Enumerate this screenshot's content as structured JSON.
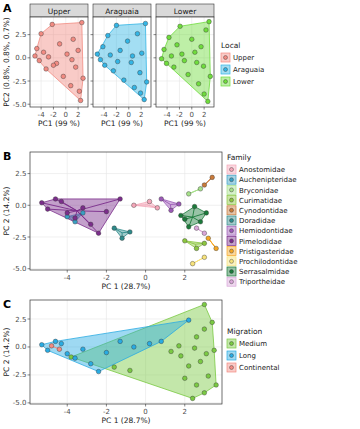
{
  "chart_data": [
    {
      "type": "scatter",
      "annotations": [
        "A"
      ],
      "title": "Upper",
      "x_label": "PC1 (99 %)",
      "y_label": "PC2 (0.8%, 0.8%, 0.7%)",
      "xlim": [
        -5.8,
        3.6
      ],
      "ylim": [
        -5.3,
        4.4
      ],
      "xticks": [
        -4,
        -2,
        0,
        2
      ],
      "yticks": [
        {
          "value": -5,
          "label": "-5.0"
        },
        -2.5,
        {
          "value": 0,
          "label": "0.0"
        },
        2.5
      ],
      "grid": true,
      "series": [
        {
          "name": "Upper",
          "color": "#f28b82",
          "x": [
            -5.0,
            -4.7,
            -4.3,
            -4.0,
            -3.6,
            -3.2,
            -2.8,
            -2.2,
            -1.5,
            -1.0,
            -0.4,
            0.2,
            0.8,
            1.2,
            1.6,
            2.0,
            2.4,
            2.6,
            2.8,
            2.2,
            1.0,
            -2.0
          ],
          "values": [
            0.2,
            1.0,
            -0.3,
            2.6,
            0.6,
            -1.2,
            0.1,
            3.6,
            -0.6,
            1.5,
            -2.0,
            0.4,
            -3.0,
            2.0,
            -1.0,
            0.8,
            -4.6,
            3.8,
            -2.2,
            -3.6,
            -0.2,
            -0.8
          ]
        }
      ]
    },
    {
      "type": "scatter",
      "title": "Araguaia",
      "x_label": "PC1 (99 %)",
      "xlim": [
        -5.8,
        3.6
      ],
      "ylim": [
        -5.3,
        4.4
      ],
      "xticks": [
        -4,
        -2,
        0,
        2
      ],
      "yticks": [
        {
          "value": -5,
          "label": "-5.0"
        },
        -2.5,
        {
          "value": 0,
          "label": "0.0"
        },
        2.5
      ],
      "grid": true,
      "tick_labels": "x",
      "series": [
        {
          "name": "Araguaia",
          "color": "#33b5e5",
          "x": [
            -5.1,
            -4.6,
            -4.2,
            -3.9,
            -3.4,
            -3.0,
            -2.5,
            -2.0,
            -1.4,
            -0.8,
            -0.2,
            0.4,
            0.9,
            1.4,
            1.8,
            2.1,
            2.5,
            2.7,
            2.9,
            1.9,
            0.6,
            -1.8
          ],
          "values": [
            0.4,
            -0.2,
            1.2,
            -0.8,
            2.4,
            0.3,
            -1.4,
            3.5,
            0.8,
            -2.4,
            1.8,
            -0.5,
            -3.2,
            2.6,
            -1.6,
            0.5,
            -4.5,
            3.7,
            -2.6,
            -3.8,
            0.2,
            -0.4
          ]
        }
      ]
    },
    {
      "type": "scatter",
      "title": "Lower",
      "x_label": "PC1 (99 %)",
      "xlim": [
        -5.8,
        3.6
      ],
      "ylim": [
        -5.3,
        4.4
      ],
      "xticks": [
        -4,
        -2,
        0,
        2
      ],
      "yticks": [
        {
          "value": -5,
          "label": "-5.0"
        },
        -2.5,
        {
          "value": 0,
          "label": "0.0"
        },
        2.5
      ],
      "grid": true,
      "tick_labels": "x",
      "legend": "right",
      "legend_title": "Local",
      "series": [
        {
          "name": "Lower",
          "color": "#6fdc3c",
          "x": [
            -4.9,
            -4.5,
            -4.1,
            -3.7,
            -3.3,
            -2.9,
            -2.4,
            -1.9,
            -1.2,
            -0.6,
            0.0,
            0.5,
            1.1,
            1.5,
            1.9,
            2.3,
            2.6,
            2.8,
            3.0,
            2.0,
            0.8,
            -1.6
          ],
          "values": [
            -0.1,
            0.9,
            -0.6,
            2.2,
            0.2,
            -1.0,
            1.4,
            3.4,
            -0.3,
            -1.8,
            2.0,
            0.6,
            -2.8,
            1.2,
            -0.9,
            3.0,
            -4.7,
            3.9,
            -2.0,
            -3.9,
            -0.5,
            0.4
          ]
        }
      ]
    },
    {
      "type": "scatter",
      "annotations": [
        "B"
      ],
      "x_label": "PC 1 (28.7%)",
      "y_label": "PC 2 (14.2%)",
      "xlim": [
        -5.9,
        3.9
      ],
      "ylim": [
        -5.1,
        4.2
      ],
      "xticks": [
        -4,
        -2,
        0,
        2
      ],
      "yticks": [
        {
          "value": -5,
          "label": "-5.0"
        },
        -2.5,
        {
          "value": 0,
          "label": "0.0"
        },
        2.5
      ],
      "grid": true,
      "legend": "right",
      "legend_title": "Family",
      "series": [
        {
          "name": "Anostomidae",
          "color": "#f4a6b8",
          "x": [
            -0.6,
            0.2,
            0.6
          ],
          "values": [
            0.0,
            0.3,
            -0.2
          ]
        },
        {
          "name": "Auchenipteridae",
          "color": "#3a9fc4",
          "x": [
            -4.0,
            -3.6,
            -3.2
          ],
          "values": [
            -0.9,
            -1.3,
            -0.6
          ]
        },
        {
          "name": "Bryconidae",
          "color": "#a6e08a",
          "x": [
            2.2,
            2.8
          ],
          "values": [
            0.9,
            1.3
          ]
        },
        {
          "name": "Curimatidae",
          "color": "#8cc63f",
          "x": [
            2.0,
            2.6,
            3.0
          ],
          "values": [
            -2.8,
            -3.4,
            -3.0
          ]
        },
        {
          "name": "Cynodontidae",
          "color": "#c97a3a",
          "x": [
            3.0,
            3.4
          ],
          "values": [
            1.6,
            2.2
          ]
        },
        {
          "name": "Doradidae",
          "color": "#2e8b8b",
          "x": [
            -1.6,
            -0.8,
            -1.2
          ],
          "values": [
            -1.8,
            -2.1,
            -2.6
          ]
        },
        {
          "name": "Hemiodontidae",
          "color": "#9b59b6",
          "x": [
            0.8,
            1.3,
            1.7
          ],
          "values": [
            0.5,
            -0.4,
            0.1
          ]
        },
        {
          "name": "Pimelodidae",
          "color": "#7b2d8b",
          "x": [
            -5.3,
            -5.0,
            -4.6,
            -4.3,
            -4.0,
            -3.6,
            -3.2,
            -2.8,
            -2.4,
            -1.3,
            -2.0
          ],
          "values": [
            0.2,
            -0.3,
            0.5,
            0.3,
            -0.6,
            -1.0,
            -0.2,
            -1.5,
            -2.2,
            0.5,
            -0.5
          ]
        },
        {
          "name": "Pristigasteridae",
          "color": "#f5a623",
          "x": [
            3.2,
            3.6
          ],
          "values": [
            -2.6,
            -3.4
          ]
        },
        {
          "name": "Prochilodontidae",
          "color": "#f7e27a",
          "x": [
            2.4,
            3.0
          ],
          "values": [
            -4.6,
            -4.1
          ]
        },
        {
          "name": "Serrasalmidae",
          "color": "#1b7a3a",
          "x": [
            1.8,
            2.2,
            2.8,
            3.1,
            2.5,
            2.0
          ],
          "values": [
            -0.8,
            -1.7,
            -1.3,
            -0.6,
            -0.1,
            -1.1
          ]
        },
        {
          "name": "Triportheidae",
          "color": "#d9a6d9",
          "x": [
            2.6,
            3.0
          ],
          "values": [
            -1.8,
            -2.2
          ]
        }
      ]
    },
    {
      "type": "scatter",
      "annotations": [
        "C"
      ],
      "x_label": "PC 1 (28.7%)",
      "y_label": "PC 2 (14.2%)",
      "xlim": [
        -5.9,
        3.9
      ],
      "ylim": [
        -5.1,
        4.2
      ],
      "xticks": [
        -4,
        -2,
        0,
        2
      ],
      "yticks": [
        {
          "value": -5,
          "label": "-5.0"
        },
        -2.5,
        {
          "value": 0,
          "label": "0.0"
        },
        2.5
      ],
      "grid": true,
      "legend": "right",
      "legend_title": "Migration",
      "series": [
        {
          "name": "Medium",
          "color": "#7ac943",
          "x": [
            -3.8,
            -1.6,
            -0.8,
            1.3,
            1.7,
            1.8,
            2.2,
            2.8,
            3.1,
            2.5,
            2.0,
            2.6,
            3.0,
            3.4,
            3.2,
            3.6,
            2.4,
            3.0,
            2.6,
            3.0,
            3.5
          ],
          "values": [
            -0.9,
            -1.8,
            -2.1,
            -0.4,
            0.1,
            -0.8,
            -1.7,
            -1.3,
            -0.6,
            -0.1,
            -2.8,
            -3.4,
            1.6,
            2.2,
            -2.6,
            -3.4,
            -4.6,
            -4.1,
            0.9,
            3.8,
            -0.3
          ]
        },
        {
          "name": "Long",
          "color": "#29abe2",
          "x": [
            -5.3,
            -5.0,
            -4.6,
            -4.3,
            -4.0,
            -3.6,
            -3.2,
            -2.8,
            -2.4,
            -2.0,
            -1.3,
            -0.6,
            0.2,
            0.8,
            2.2
          ],
          "values": [
            0.2,
            -0.3,
            0.5,
            0.3,
            -0.6,
            -1.0,
            -0.2,
            -1.5,
            -2.2,
            -0.5,
            0.5,
            0.0,
            0.3,
            0.5,
            2.4
          ]
        },
        {
          "name": "Continental",
          "color": "#f28b82",
          "x": [
            -4.8,
            -4.4
          ],
          "values": [
            0.1,
            -0.2
          ]
        }
      ]
    }
  ]
}
